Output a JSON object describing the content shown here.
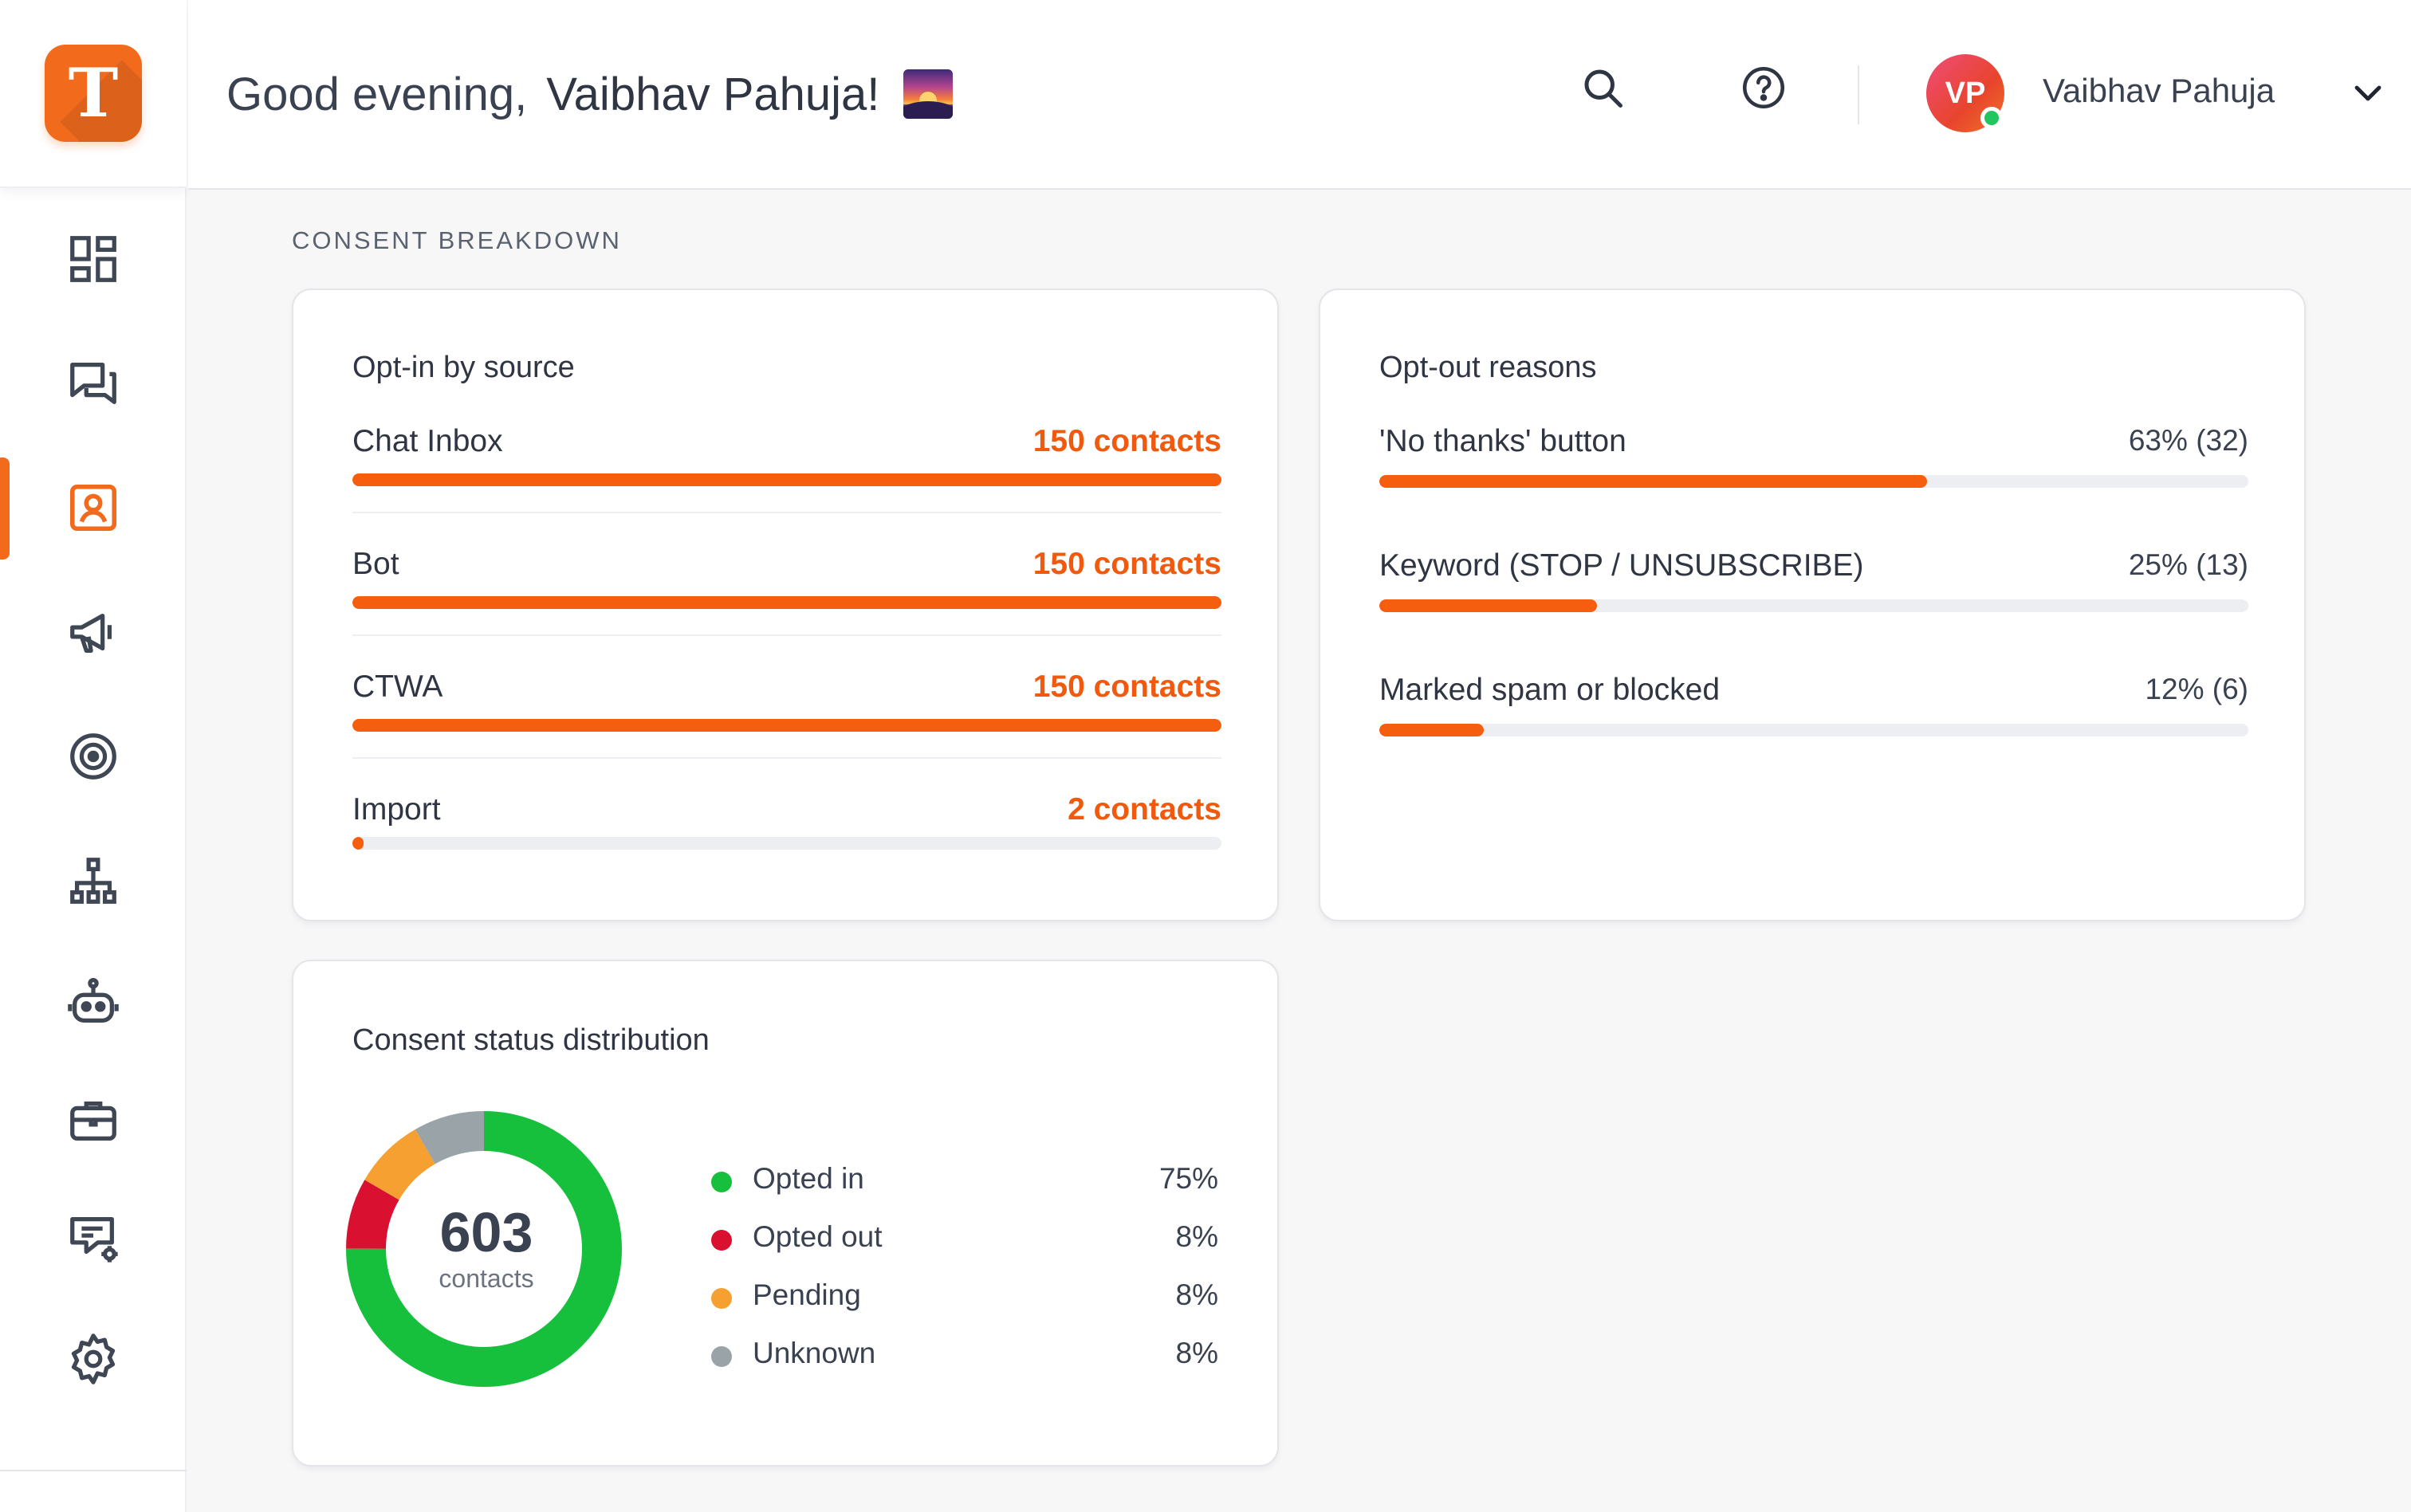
{
  "app": {
    "logo_letter": "T",
    "brand_color": "#f26b1d"
  },
  "sidebar": {
    "items": [
      {
        "icon": "dashboard-icon",
        "active": false
      },
      {
        "icon": "chat-icon",
        "active": false
      },
      {
        "icon": "contacts-icon",
        "active": true
      },
      {
        "icon": "megaphone-icon",
        "active": false
      },
      {
        "icon": "target-icon",
        "active": false
      },
      {
        "icon": "hierarchy-icon",
        "active": false
      },
      {
        "icon": "bot-icon",
        "active": false
      },
      {
        "icon": "briefcase-icon",
        "active": false
      },
      {
        "icon": "message-settings-icon",
        "active": false
      },
      {
        "icon": "gear-icon",
        "active": false
      }
    ]
  },
  "header": {
    "greeting": "Good evening,",
    "user_first_last": "Vaibhav Pahuja!",
    "greeting_emoji": "sunset-emoji",
    "avatar_initials": "VP",
    "user_name": "Vaibhav Pahuja",
    "status": "online"
  },
  "section": {
    "title": "CONSENT BREAKDOWN"
  },
  "optin": {
    "title": "Opt-in by source",
    "rows": [
      {
        "label": "Chat Inbox",
        "value": "150 contacts",
        "fraction": 1.0
      },
      {
        "label": "Bot",
        "value": "150 contacts",
        "fraction": 1.0
      },
      {
        "label": "CTWA",
        "value": "150 contacts",
        "fraction": 1.0
      },
      {
        "label": "Import",
        "value": "2 contacts",
        "fraction": 0.013
      }
    ]
  },
  "optout": {
    "title": "Opt-out reasons",
    "rows": [
      {
        "label": "'No thanks' button",
        "value": "63% (32)",
        "fraction": 0.63
      },
      {
        "label": "Keyword (STOP / UNSUBSCRIBE)",
        "value": "25% (13)",
        "fraction": 0.25
      },
      {
        "label": "Marked spam or blocked",
        "value": "12% (6)",
        "fraction": 0.12
      }
    ]
  },
  "distribution": {
    "title": "Consent status distribution",
    "total": "603",
    "total_label": "contacts",
    "legend": [
      {
        "label": "Opted in",
        "value": "75%",
        "color": "#16c03c",
        "fraction": 0.75
      },
      {
        "label": "Opted out",
        "value": "8%",
        "color": "#d9102f",
        "fraction": 0.0833
      },
      {
        "label": "Pending",
        "value": "8%",
        "color": "#f5a031",
        "fraction": 0.0833
      },
      {
        "label": "Unknown",
        "value": "8%",
        "color": "#9aa3a8",
        "fraction": 0.0834
      }
    ]
  }
}
